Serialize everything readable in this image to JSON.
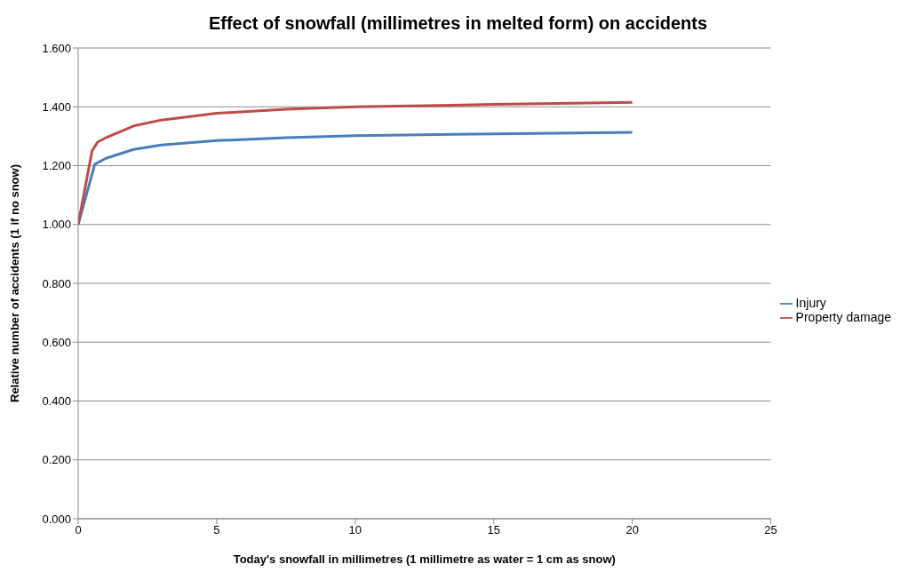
{
  "chart_data": {
    "type": "line",
    "title": "Effect of snowfall (millimetres in melted form) on accidents",
    "xlabel": "Today's snowfall in millimetres (1 millimetre as water = 1 cm as snow)",
    "ylabel": "Relative number of accidents (1 if no snow)",
    "series": [
      {
        "name": "Injury",
        "color": "#4a7ebb",
        "x": [
          0,
          0.6,
          1,
          2,
          3,
          5,
          7.5,
          10,
          15,
          20
        ],
        "values": [
          1.0,
          1.205,
          1.225,
          1.255,
          1.27,
          1.285,
          1.295,
          1.302,
          1.308,
          1.313
        ]
      },
      {
        "name": "Property damage",
        "color": "#be4b48",
        "x": [
          0,
          0.5,
          0.7,
          1,
          2,
          3,
          5,
          7.5,
          10,
          15,
          20
        ],
        "values": [
          1.0,
          1.25,
          1.28,
          1.295,
          1.335,
          1.355,
          1.378,
          1.392,
          1.4,
          1.408,
          1.415
        ]
      }
    ],
    "xlim": [
      0,
      25
    ],
    "xticks": [
      0,
      5,
      10,
      15,
      20,
      25
    ],
    "ylim": [
      0,
      1.6
    ],
    "yticks": [
      {
        "value": 0,
        "label": "0.000"
      },
      {
        "value": 0.2,
        "label": "0.200"
      },
      {
        "value": 0.4,
        "label": "0.400"
      },
      {
        "value": 0.6,
        "label": "0.600"
      },
      {
        "value": 0.8,
        "label": "0.800"
      },
      {
        "value": 1,
        "label": "1.000"
      },
      {
        "value": 1.2,
        "label": "1.200"
      },
      {
        "value": 1.4,
        "label": "1.400"
      },
      {
        "value": 1.6,
        "label": "1.600"
      }
    ],
    "grid": "y",
    "legend": "right",
    "marker": "none",
    "line_style": "solid"
  }
}
